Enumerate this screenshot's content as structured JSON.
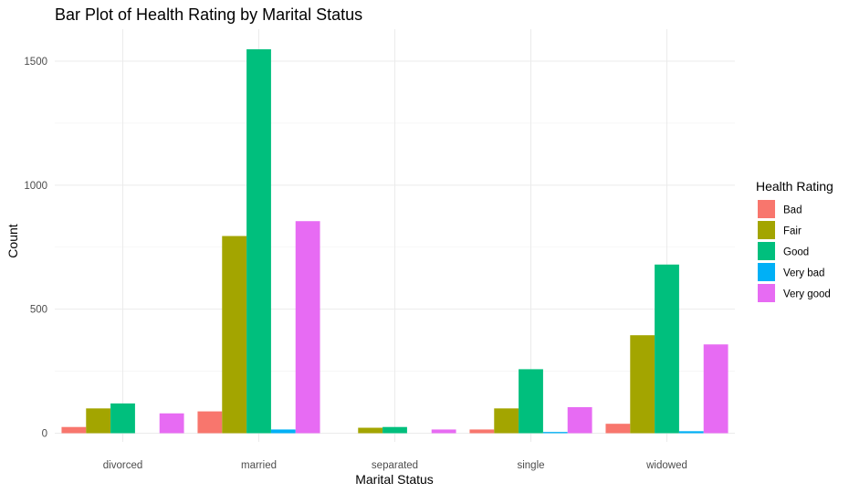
{
  "chart_data": {
    "type": "bar",
    "title": "Bar Plot of Health Rating by Marital Status",
    "xlabel": "Marital Status",
    "ylabel": "Count",
    "categories": [
      "divorced",
      "married",
      "separated",
      "single",
      "widowed"
    ],
    "ylim": [
      0,
      1600
    ],
    "yticks": [
      0,
      500,
      1000,
      1500
    ],
    "grid": true,
    "legend": {
      "title": "Health Rating",
      "position": "right"
    },
    "series": [
      {
        "name": "Bad",
        "color": "#F8766D",
        "values": [
          25,
          88,
          0,
          15,
          38
        ]
      },
      {
        "name": "Fair",
        "color": "#A3A500",
        "values": [
          100,
          795,
          22,
          100,
          395
        ]
      },
      {
        "name": "Good",
        "color": "#00BF7D",
        "values": [
          120,
          1548,
          25,
          258,
          680
        ]
      },
      {
        "name": "Very bad",
        "color": "#00B0F6",
        "values": [
          0,
          15,
          0,
          5,
          8
        ]
      },
      {
        "name": "Very good",
        "color": "#E76BF3",
        "values": [
          80,
          855,
          15,
          105,
          358
        ]
      }
    ]
  }
}
